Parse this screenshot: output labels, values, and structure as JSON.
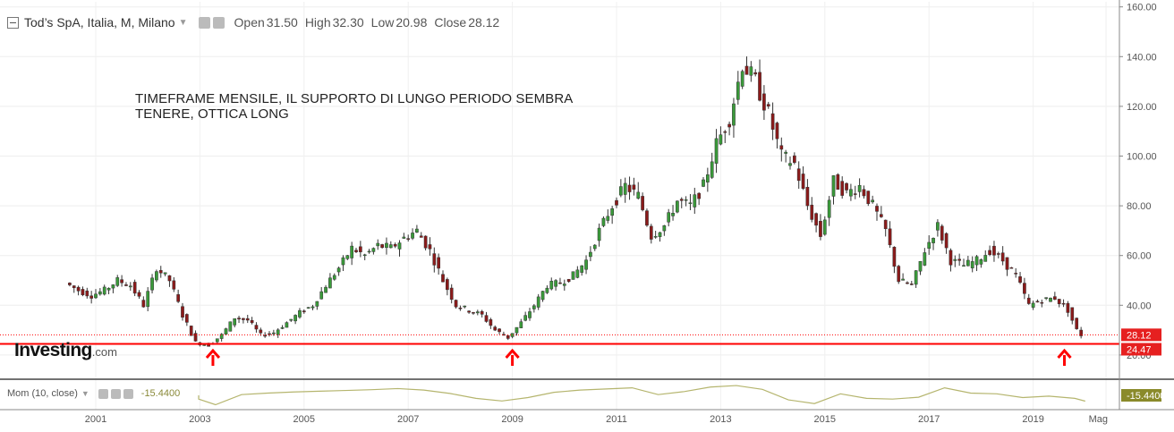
{
  "header": {
    "title": "Tod’s SpA, Italia, M, Milano",
    "open_label": "Open",
    "open_value": "31.50",
    "high_label": "High",
    "high_value": "32.30",
    "low_label": "Low",
    "low_value": "20.98",
    "close_label": "Close",
    "close_value": "28.12"
  },
  "annotation": {
    "line1": "TIMEFRAME MENSILE, IL SUPPORTO DI LUNGO PERIODO SEMBRA",
    "line2": "TENERE, OTTICA LONG"
  },
  "logo": {
    "main": "Investing",
    "suffix": ".com"
  },
  "indicator": {
    "label": "Mom (10, close)",
    "value": "-15.4400",
    "axis_value": "-15.4400"
  },
  "price_labels": {
    "last": "28.12",
    "support": "24.47"
  },
  "colors": {
    "up": "#3a9a3a",
    "down": "#8b1a1a",
    "support_line": "#ff0000",
    "momentum": "#b5b56e",
    "label_bg": "#e62020",
    "mom_label_bg": "#8a8a2a",
    "arrow": "#ff0000"
  },
  "chart_data": {
    "type": "candlestick",
    "interval": "monthly",
    "x_ticks": [
      "2001",
      "2003",
      "2005",
      "2007",
      "2009",
      "2011",
      "2013",
      "2015",
      "2017",
      "2019",
      "Mag"
    ],
    "y_ticks": [
      "20.00",
      "40.00",
      "60.00",
      "80.00",
      "100.00",
      "120.00",
      "140.00",
      "160.00"
    ],
    "ylim": [
      16,
      160
    ],
    "support_level": 24.47,
    "last_price": 28.12,
    "arrow_dates": [
      2003.25,
      2009.0,
      2019.6
    ],
    "series": [
      {
        "name": "Tod’s SpA",
        "points": [
          [
            2000.5,
            49
          ],
          [
            2000.75,
            46
          ],
          [
            2001.0,
            44
          ],
          [
            2001.25,
            46
          ],
          [
            2001.5,
            50
          ],
          [
            2001.75,
            48
          ],
          [
            2002.0,
            40
          ],
          [
            2002.25,
            55
          ],
          [
            2002.5,
            50
          ],
          [
            2002.75,
            36
          ],
          [
            2003.0,
            25
          ],
          [
            2003.25,
            24
          ],
          [
            2003.5,
            28
          ],
          [
            2003.75,
            35
          ],
          [
            2004.0,
            34
          ],
          [
            2004.25,
            28
          ],
          [
            2004.5,
            29
          ],
          [
            2004.75,
            33
          ],
          [
            2005.0,
            37
          ],
          [
            2005.25,
            40
          ],
          [
            2005.5,
            48
          ],
          [
            2005.75,
            55
          ],
          [
            2006.0,
            63
          ],
          [
            2006.25,
            60
          ],
          [
            2006.5,
            64
          ],
          [
            2006.75,
            63
          ],
          [
            2007.0,
            67
          ],
          [
            2007.25,
            70
          ],
          [
            2007.5,
            62
          ],
          [
            2007.75,
            50
          ],
          [
            2008.0,
            40
          ],
          [
            2008.25,
            38
          ],
          [
            2008.5,
            36
          ],
          [
            2008.75,
            30
          ],
          [
            2009.0,
            27
          ],
          [
            2009.25,
            33
          ],
          [
            2009.5,
            40
          ],
          [
            2009.75,
            48
          ],
          [
            2010.0,
            49
          ],
          [
            2010.25,
            52
          ],
          [
            2010.5,
            58
          ],
          [
            2010.75,
            70
          ],
          [
            2011.0,
            80
          ],
          [
            2011.25,
            88
          ],
          [
            2011.5,
            84
          ],
          [
            2011.75,
            68
          ],
          [
            2012.0,
            72
          ],
          [
            2012.25,
            82
          ],
          [
            2012.5,
            80
          ],
          [
            2012.75,
            88
          ],
          [
            2013.0,
            105
          ],
          [
            2013.25,
            115
          ],
          [
            2013.5,
            137
          ],
          [
            2013.75,
            130
          ],
          [
            2014.0,
            117
          ],
          [
            2014.25,
            100
          ],
          [
            2014.5,
            97
          ],
          [
            2014.75,
            80
          ],
          [
            2015.0,
            68
          ],
          [
            2015.25,
            90
          ],
          [
            2015.5,
            85
          ],
          [
            2015.75,
            88
          ],
          [
            2016.0,
            80
          ],
          [
            2016.25,
            70
          ],
          [
            2016.5,
            50
          ],
          [
            2016.75,
            48
          ],
          [
            2017.0,
            62
          ],
          [
            2017.25,
            72
          ],
          [
            2017.5,
            58
          ],
          [
            2017.75,
            56
          ],
          [
            2018.0,
            58
          ],
          [
            2018.25,
            62
          ],
          [
            2018.5,
            58
          ],
          [
            2018.75,
            52
          ],
          [
            2019.0,
            40
          ],
          [
            2019.25,
            42
          ],
          [
            2019.5,
            43
          ],
          [
            2019.75,
            38
          ],
          [
            2019.92,
            30
          ],
          [
            2020.0,
            28.12
          ]
        ]
      }
    ],
    "momentum": {
      "name": "Mom (10, close)",
      "points": [
        [
          2002.3,
          0
        ],
        [
          2002.8,
          -10
        ],
        [
          2003.3,
          -25
        ],
        [
          2003.8,
          2
        ],
        [
          2004.3,
          6
        ],
        [
          2004.8,
          9
        ],
        [
          2005.3,
          11
        ],
        [
          2005.8,
          13
        ],
        [
          2006.3,
          15
        ],
        [
          2006.8,
          18
        ],
        [
          2007.3,
          14
        ],
        [
          2007.8,
          5
        ],
        [
          2008.3,
          -8
        ],
        [
          2008.8,
          -15
        ],
        [
          2009.3,
          -6
        ],
        [
          2009.8,
          8
        ],
        [
          2010.3,
          14
        ],
        [
          2010.8,
          17
        ],
        [
          2011.3,
          20
        ],
        [
          2011.8,
          2
        ],
        [
          2012.3,
          10
        ],
        [
          2012.8,
          22
        ],
        [
          2013.3,
          26
        ],
        [
          2013.8,
          16
        ],
        [
          2014.3,
          -12
        ],
        [
          2014.8,
          -22
        ],
        [
          2015.3,
          4
        ],
        [
          2015.8,
          -8
        ],
        [
          2016.3,
          -10
        ],
        [
          2016.8,
          -5
        ],
        [
          2017.3,
          20
        ],
        [
          2017.8,
          6
        ],
        [
          2018.3,
          4
        ],
        [
          2018.8,
          -6
        ],
        [
          2019.3,
          -2
        ],
        [
          2019.8,
          -8
        ],
        [
          2020.0,
          -15.44
        ]
      ]
    }
  }
}
